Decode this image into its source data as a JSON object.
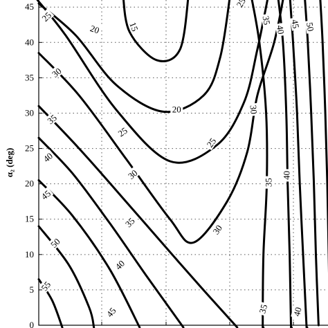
{
  "chart_data": {
    "type": "contour",
    "ylabel": "α₂ (deg)",
    "y_ticks": [
      "0",
      "5",
      "10",
      "15",
      "20",
      "25",
      "30",
      "35",
      "40",
      "45"
    ],
    "grid": true,
    "line_color": "#000000",
    "contours": [
      {
        "level": "15",
        "points": [
          [
            18.5,
            47
          ],
          [
            19.5,
            41.5
          ],
          [
            23.5,
            37.5
          ],
          [
            27,
            39
          ],
          [
            28.3,
            47
          ]
        ],
        "labels": [
          {
            "text": "15",
            "x": 20.1,
            "y": 42.2,
            "rot": 70
          }
        ]
      },
      {
        "level": "20",
        "points": [
          [
            6,
            45.5
          ],
          [
            11.5,
            41
          ],
          [
            17.5,
            34
          ],
          [
            24.5,
            30.2
          ],
          [
            30.5,
            32.5
          ],
          [
            33,
            38
          ],
          [
            34.5,
            47
          ]
        ],
        "labels": [
          {
            "text": "20",
            "x": 14.3,
            "y": 41.8,
            "rot": 20
          },
          {
            "text": "20",
            "x": 26.5,
            "y": 30.5,
            "rot": 0
          }
        ]
      },
      {
        "level": "25",
        "points": [
          [
            5.8,
            46
          ],
          [
            10,
            41
          ],
          [
            17.5,
            30.5
          ],
          [
            25.5,
            23.2
          ],
          [
            32.5,
            25.5
          ],
          [
            36.5,
            31.5
          ],
          [
            38.5,
            39
          ],
          [
            40.2,
            47
          ]
        ],
        "labels": [
          {
            "text": "25",
            "x": 7.2,
            "y": 43.6,
            "rot": -45
          },
          {
            "text": "25",
            "x": 18.5,
            "y": 27.3,
            "rot": -35
          },
          {
            "text": "25",
            "x": 31.7,
            "y": 25.8,
            "rot": -55
          },
          {
            "text": "25",
            "x": 36.1,
            "y": 45.6,
            "rot": -60
          }
        ]
      },
      {
        "level": "30",
        "points": [
          [
            6,
            38.5
          ],
          [
            12,
            32.5
          ],
          [
            19,
            23.5
          ],
          [
            25.5,
            15
          ],
          [
            29,
            11.7
          ],
          [
            34,
            17.5
          ],
          [
            37,
            24.5
          ],
          [
            38.5,
            32.5
          ],
          [
            41,
            40
          ],
          [
            42.5,
            47
          ]
        ],
        "labels": [
          {
            "text": "30",
            "x": 8.7,
            "y": 35.7,
            "rot": -40
          },
          {
            "text": "30",
            "x": 20,
            "y": 21.3,
            "rot": -40
          },
          {
            "text": "30",
            "x": 32.6,
            "y": 13.5,
            "rot": -55
          },
          {
            "text": "30",
            "x": 37.9,
            "y": 30.5,
            "rot": 85
          }
        ]
      },
      {
        "level": "35",
        "points": [
          [
            6,
            31
          ],
          [
            12,
            25
          ],
          [
            18.5,
            18
          ],
          [
            24,
            12
          ],
          [
            30,
            5.5
          ],
          [
            35.5,
            -0.3
          ]
        ],
        "labels": [
          {
            "text": "35",
            "x": 8,
            "y": 29.1,
            "rot": -40
          },
          {
            "text": "35",
            "x": 19.6,
            "y": 14.5,
            "rot": -45
          }
        ]
      },
      {
        "level": "35",
        "points": [
          [
            37.5,
            47
          ],
          [
            38.8,
            40
          ],
          [
            39.8,
            30
          ],
          [
            39.9,
            20
          ],
          [
            39.4,
            10
          ],
          [
            39.3,
            0
          ],
          [
            39.4,
            -0.3
          ]
        ],
        "labels": [
          {
            "text": "35",
            "x": 39.8,
            "y": 43.1,
            "rot": 80
          },
          {
            "text": "35",
            "x": 40.2,
            "y": 20.2,
            "rot": -90
          },
          {
            "text": "35",
            "x": 39.4,
            "y": 2.3,
            "rot": -75
          }
        ]
      },
      {
        "level": "40",
        "points": [
          [
            6,
            26.5
          ],
          [
            11,
            21.5
          ],
          [
            16.5,
            14.5
          ],
          [
            22,
            7
          ],
          [
            27.5,
            -0.3
          ]
        ],
        "labels": [
          {
            "text": "40",
            "x": 7.4,
            "y": 23.7,
            "rot": -40
          },
          {
            "text": "40",
            "x": 18.1,
            "y": 8.5,
            "rot": -45
          }
        ]
      },
      {
        "level": "40",
        "points": [
          [
            41.5,
            47
          ],
          [
            42.3,
            40
          ],
          [
            42.8,
            30
          ],
          [
            43,
            20
          ],
          [
            43.3,
            10
          ],
          [
            43.5,
            0
          ],
          [
            43.6,
            -0.3
          ]
        ],
        "labels": [
          {
            "text": "40",
            "x": 41.9,
            "y": 41.8,
            "rot": 80
          },
          {
            "text": "40",
            "x": 42.9,
            "y": 21.2,
            "rot": -90
          },
          {
            "text": "40",
            "x": 44.5,
            "y": 1.9,
            "rot": -75
          }
        ]
      },
      {
        "level": "45",
        "points": [
          [
            6,
            20.5
          ],
          [
            11,
            15.5
          ],
          [
            16.5,
            8
          ],
          [
            21,
            -0.3
          ]
        ],
        "labels": [
          {
            "text": "45",
            "x": 7.1,
            "y": 18.4,
            "rot": -40
          },
          {
            "text": "45",
            "x": 16.8,
            "y": 1.8,
            "rot": -50
          }
        ]
      },
      {
        "level": "45",
        "points": [
          [
            43.3,
            47
          ],
          [
            43.8,
            40
          ],
          [
            44.4,
            30
          ],
          [
            44.8,
            20
          ],
          [
            45.3,
            10
          ],
          [
            45.8,
            0
          ],
          [
            45.9,
            -0.3
          ]
        ],
        "labels": [
          {
            "text": "45",
            "x": 44.1,
            "y": 42.6,
            "rot": 80
          }
        ]
      },
      {
        "level": "50",
        "points": [
          [
            6,
            14
          ],
          [
            10.5,
            8.5
          ],
          [
            13.5,
            2.5
          ],
          [
            14.2,
            -0.3
          ]
        ],
        "labels": [
          {
            "text": "50",
            "x": 8.5,
            "y": 11.6,
            "rot": -45
          }
        ]
      },
      {
        "level": "50",
        "points": [
          [
            45.5,
            47
          ],
          [
            46,
            40
          ],
          [
            46.5,
            30
          ],
          [
            46.9,
            20
          ],
          [
            47.2,
            10
          ],
          [
            47.6,
            0
          ]
        ],
        "labels": [
          {
            "text": "50",
            "x": 46.3,
            "y": 42.2,
            "rot": 80
          }
        ]
      },
      {
        "level": "55",
        "points": [
          [
            6,
            6.5
          ],
          [
            8,
            3.5
          ],
          [
            9.5,
            -0.3
          ]
        ],
        "labels": [
          {
            "text": "55",
            "x": 7.1,
            "y": 5.5,
            "rot": -50
          }
        ]
      },
      {
        "level": "55",
        "points": [
          [
            47.8,
            47
          ],
          [
            48.2,
            40
          ],
          [
            48.6,
            30
          ],
          [
            48.9,
            20
          ],
          [
            49.1,
            10
          ],
          [
            49.3,
            0
          ]
        ],
        "labels": []
      }
    ],
    "x_range": [
      6,
      49
    ],
    "y_range": [
      0,
      46
    ]
  }
}
